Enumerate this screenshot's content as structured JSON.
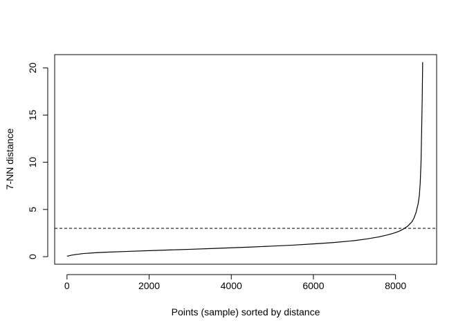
{
  "chart_data": {
    "type": "line",
    "title": "",
    "xlabel": "Points (sample) sorted by distance",
    "ylabel": "7-NN distance",
    "xlim": [
      -300,
      9000
    ],
    "ylim": [
      -0.8,
      21.4
    ],
    "x_ticks": [
      0,
      2000,
      4000,
      6000,
      8000
    ],
    "x_tick_labels": [
      "0",
      "2000",
      "4000",
      "6000",
      "8000"
    ],
    "y_ticks": [
      0,
      5,
      10,
      15,
      20
    ],
    "y_tick_labels": [
      "0",
      "5",
      "10",
      "15",
      "20"
    ],
    "grid": false,
    "series": [
      {
        "x": [
          0,
          100,
          200,
          400,
          700,
          1000,
          1500,
          2000,
          2500,
          3000,
          3500,
          4000,
          4500,
          5000,
          5500,
          6000,
          6500,
          7000,
          7300,
          7600,
          7800,
          8000,
          8100,
          8200,
          8300,
          8400,
          8450,
          8500,
          8550,
          8580,
          8600,
          8620,
          8640,
          8650,
          8660
        ],
        "y": [
          0.05,
          0.15,
          0.22,
          0.33,
          0.42,
          0.48,
          0.56,
          0.64,
          0.71,
          0.78,
          0.86,
          0.94,
          1.02,
          1.12,
          1.22,
          1.35,
          1.5,
          1.7,
          1.88,
          2.1,
          2.3,
          2.55,
          2.72,
          2.95,
          3.25,
          3.7,
          4.1,
          4.7,
          5.6,
          6.5,
          7.8,
          10.0,
          14.5,
          17.0,
          20.6
        ]
      }
    ],
    "reference_lines": [
      {
        "orientation": "horizontal",
        "y": 3.0,
        "style": "dashed"
      }
    ]
  }
}
